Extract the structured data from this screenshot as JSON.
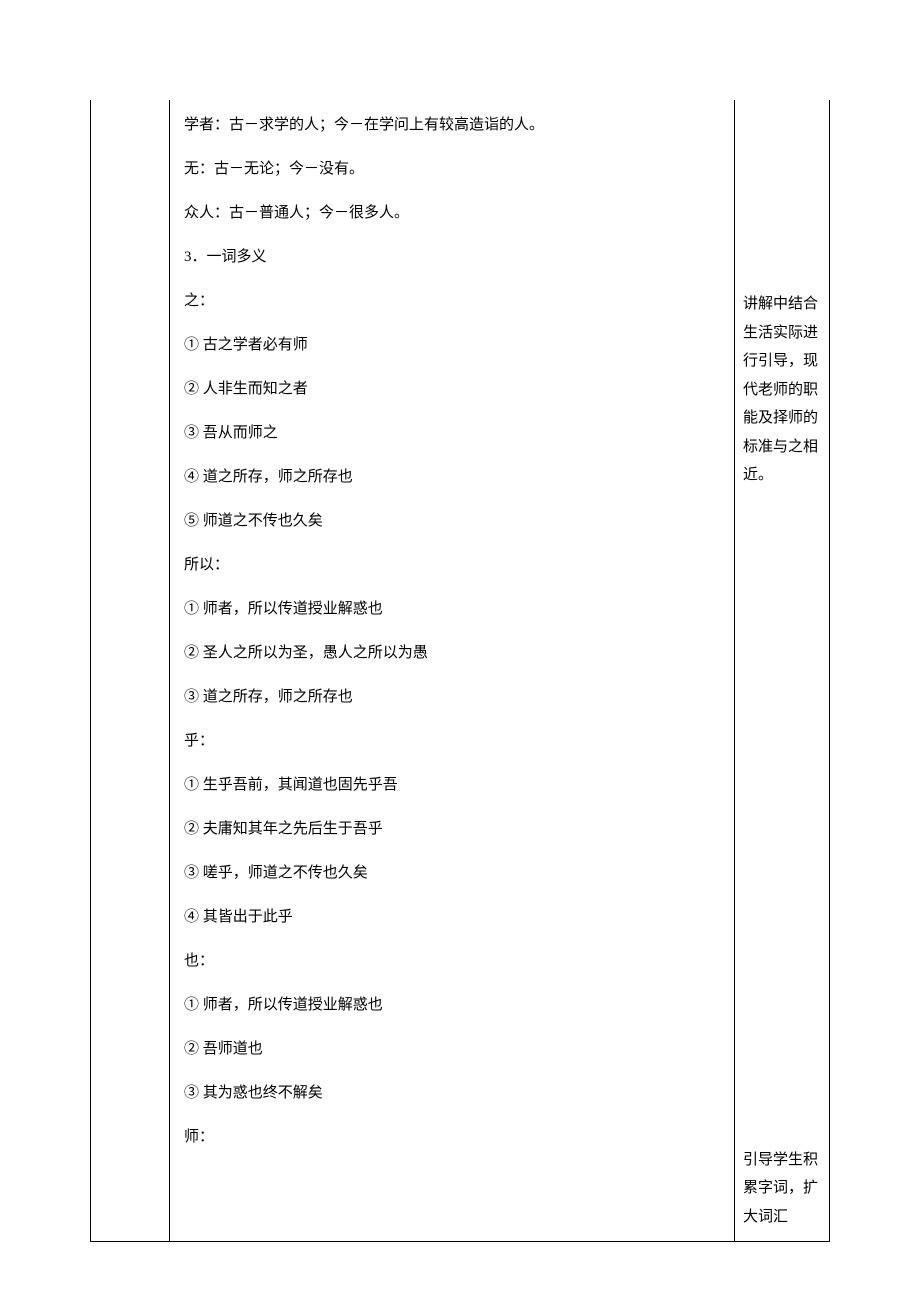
{
  "main": {
    "lines": [
      "学者：古－求学的人；今－在学问上有较高造诣的人。",
      "无：古－无论；今－没有。",
      "众人：古－普通人；今－很多人。",
      "3．一词多义",
      "之：",
      "① 古之学者必有师",
      "② 人非生而知之者",
      "③ 吾从而师之",
      "④ 道之所存，师之所存也",
      "⑤ 师道之不传也久矣",
      "所以：",
      "① 师者，所以传道授业解惑也",
      "② 圣人之所以为圣，愚人之所以为愚",
      "③ 道之所存，师之所存也",
      "乎：",
      "① 生乎吾前，其闻道也固先乎吾",
      "② 夫庸知其年之先后生于吾乎",
      "③ 嗟乎，师道之不传也久矣",
      "④ 其皆出于此乎",
      "也：",
      "① 师者，所以传道授业解惑也",
      "② 吾师道也",
      "③ 其为惑也终不解矣",
      "师："
    ]
  },
  "side": {
    "note1": "讲解中结合生活实际进行引导，现代老师的职能及择师的标准与之相近。",
    "note2": "引导学生积累字词，扩大词汇"
  }
}
